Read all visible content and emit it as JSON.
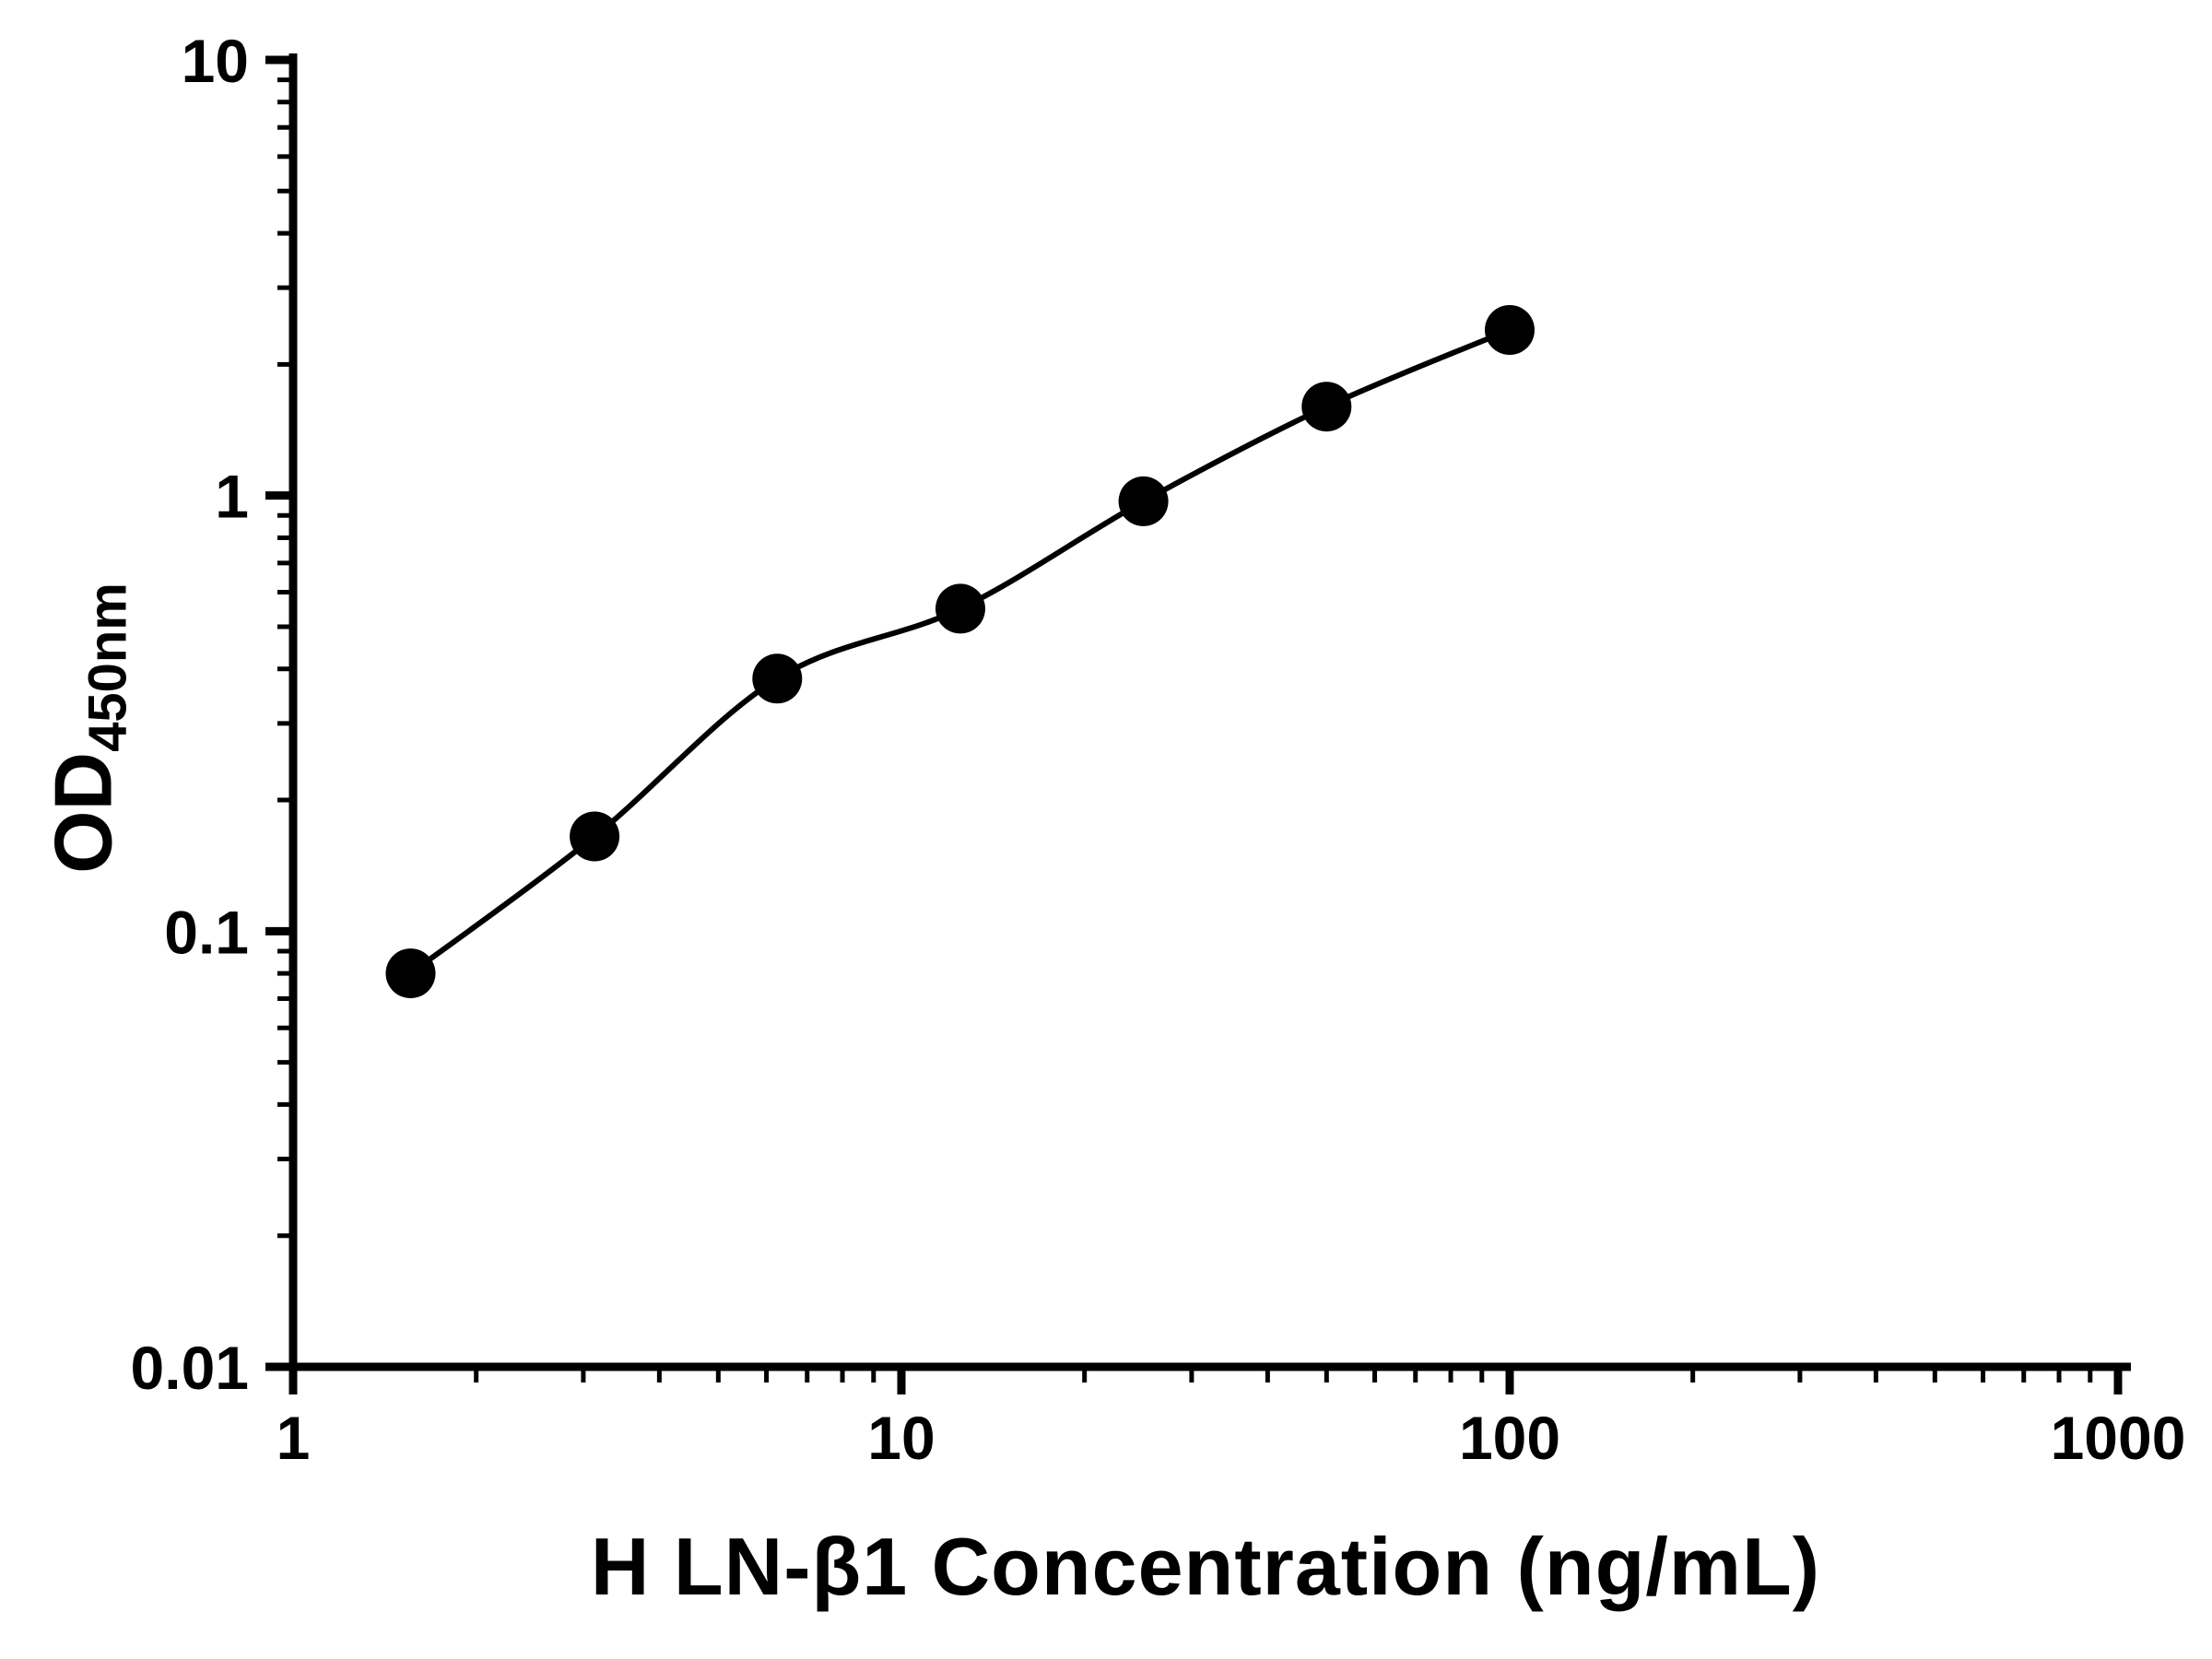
{
  "chart_data": {
    "type": "scatter",
    "title": "",
    "xlabel": "H LN-β1 Concentration (ng/mL)",
    "ylabel": "OD450nm",
    "ylabel_base": "OD",
    "ylabel_sub": "450nm",
    "x_scale": "log10",
    "y_scale": "log10",
    "xlim": [
      1,
      1000
    ],
    "ylim": [
      0.01,
      10
    ],
    "x_ticks": [
      1,
      10,
      100,
      1000
    ],
    "x_tick_labels": [
      "1",
      "10",
      "100",
      "1000"
    ],
    "y_ticks": [
      0.01,
      0.1,
      1,
      10
    ],
    "y_tick_labels": [
      "0.01",
      "0.1",
      "1",
      "10"
    ],
    "grid": false,
    "legend": false,
    "axis_color": "#000000",
    "series": [
      {
        "marker": "circle",
        "marker_color": "#000000",
        "line_color": "#000000",
        "points": [
          {
            "x": 1.56,
            "y": 0.08
          },
          {
            "x": 3.13,
            "y": 0.165
          },
          {
            "x": 6.25,
            "y": 0.38
          },
          {
            "x": 12.5,
            "y": 0.55
          },
          {
            "x": 25,
            "y": 0.97
          },
          {
            "x": 50,
            "y": 1.6
          },
          {
            "x": 100,
            "y": 2.4
          }
        ]
      }
    ]
  }
}
